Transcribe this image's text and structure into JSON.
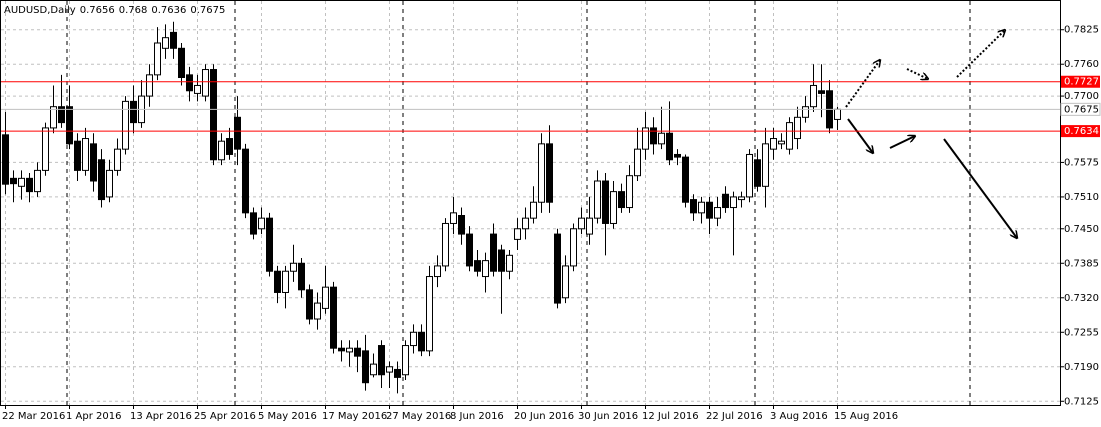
{
  "chart_data": {
    "type": "candlestick",
    "title": "AUDUSD,Daily",
    "categories": [
      "22 Mar 2016",
      null,
      null,
      null,
      null,
      null,
      null,
      null,
      "1 Apr 2016",
      null,
      null,
      null,
      null,
      null,
      null,
      null,
      "13 Apr 2016",
      null,
      null,
      null,
      null,
      null,
      null,
      null,
      "25 Apr 2016",
      null,
      null,
      null,
      null,
      null,
      null,
      null,
      "5 May 2016",
      null,
      null,
      null,
      null,
      null,
      null,
      null,
      "17 May 2016",
      null,
      null,
      null,
      null,
      null,
      null,
      null,
      "27 May 2016",
      null,
      null,
      null,
      null,
      null,
      null,
      null,
      "8 Jun 2016",
      null,
      null,
      null,
      null,
      null,
      null,
      null,
      "20 Jun 2016",
      null,
      null,
      null,
      null,
      null,
      null,
      null,
      "30 Jun 2016",
      null,
      null,
      null,
      null,
      null,
      null,
      null,
      "12 Jul 2016",
      null,
      null,
      null,
      null,
      null,
      null,
      null,
      "22 Jul 2016",
      null,
      null,
      null,
      null,
      null,
      null,
      null,
      "3 Aug 2016",
      null,
      null,
      null,
      null,
      null,
      null,
      null,
      "15 Aug 2016"
    ],
    "open": [
      0.7627,
      0.7545,
      0.753,
      0.7545,
      0.752,
      0.756,
      0.764,
      0.768,
      0.768,
      0.7615,
      0.756,
      0.761,
      0.758,
      0.751,
      0.756,
      0.76,
      0.769,
      0.765,
      0.77,
      0.774,
      0.779,
      0.782,
      0.779,
      0.774,
      0.7705,
      0.77,
      0.775,
      0.758,
      0.762,
      0.766,
      0.76,
      0.748,
      0.745,
      0.747,
      0.737,
      0.733,
      0.737,
      0.7385,
      0.7335,
      0.728,
      0.73,
      0.734,
      0.7225,
      0.7218,
      0.7225,
      0.722,
      0.7175,
      0.723,
      0.718,
      0.7185,
      0.7175,
      0.723,
      0.7255,
      0.722,
      0.736,
      0.738,
      0.746,
      0.7475,
      0.744,
      0.739,
      0.736,
      0.744,
      0.741,
      0.737,
      0.743,
      0.745,
      0.747,
      0.75,
      0.761,
      0.744,
      0.732,
      0.738,
      0.745,
      0.744,
      0.747,
      0.754,
      0.746,
      0.752,
      0.749,
      0.755,
      0.76,
      0.764,
      0.761,
      0.763,
      0.759,
      0.7585,
      0.7505,
      0.748,
      0.75,
      0.747,
      0.7515,
      0.749,
      0.7505,
      0.751,
      0.758,
      0.753,
      0.76,
      0.761,
      0.76,
      0.762,
      0.766,
      0.768,
      0.771,
      0.771,
      0.7656
    ],
    "high": [
      0.767,
      0.756,
      0.756,
      0.7555,
      0.7575,
      0.765,
      0.772,
      0.774,
      0.772,
      0.763,
      0.764,
      0.763,
      0.76,
      0.758,
      0.762,
      0.77,
      0.772,
      0.773,
      0.776,
      0.783,
      0.7835,
      0.784,
      0.78,
      0.7755,
      0.774,
      0.776,
      0.776,
      0.763,
      0.764,
      0.77,
      0.761,
      0.749,
      0.749,
      0.748,
      0.738,
      0.738,
      0.742,
      0.7395,
      0.7345,
      0.733,
      0.738,
      0.735,
      0.724,
      0.724,
      0.724,
      0.725,
      0.7215,
      0.724,
      0.72,
      0.72,
      0.724,
      0.727,
      0.727,
      0.738,
      0.74,
      0.747,
      0.751,
      0.749,
      0.7455,
      0.741,
      0.7405,
      0.746,
      0.742,
      0.741,
      0.747,
      0.749,
      0.753,
      0.763,
      0.7645,
      0.745,
      0.74,
      0.746,
      0.749,
      0.751,
      0.756,
      0.7555,
      0.754,
      0.7535,
      0.757,
      0.764,
      0.767,
      0.766,
      0.768,
      0.769,
      0.76,
      0.759,
      0.7515,
      0.751,
      0.751,
      0.751,
      0.753,
      0.752,
      0.752,
      0.76,
      0.76,
      0.764,
      0.764,
      0.763,
      0.766,
      0.768,
      0.77,
      0.776,
      0.776,
      0.773,
      0.768
    ],
    "low": [
      0.7515,
      0.75,
      0.7505,
      0.75,
      0.751,
      0.755,
      0.763,
      0.764,
      0.76,
      0.754,
      0.755,
      0.752,
      0.749,
      0.75,
      0.755,
      0.759,
      0.763,
      0.764,
      0.768,
      0.773,
      0.777,
      0.777,
      0.772,
      0.769,
      0.769,
      0.769,
      0.757,
      0.757,
      0.758,
      0.757,
      0.747,
      0.743,
      0.744,
      0.736,
      0.731,
      0.73,
      0.735,
      0.732,
      0.727,
      0.726,
      0.729,
      0.7215,
      0.72,
      0.719,
      0.718,
      0.7145,
      0.717,
      0.715,
      0.715,
      0.714,
      0.7165,
      0.7215,
      0.721,
      0.721,
      0.734,
      0.737,
      0.744,
      0.742,
      0.737,
      0.736,
      0.733,
      0.736,
      0.729,
      0.7355,
      0.741,
      0.743,
      0.746,
      0.748,
      0.748,
      0.73,
      0.731,
      0.737,
      0.744,
      0.742,
      0.746,
      0.74,
      0.745,
      0.748,
      0.748,
      0.754,
      0.758,
      0.759,
      0.76,
      0.757,
      0.757,
      0.749,
      0.7465,
      0.746,
      0.744,
      0.7455,
      0.748,
      0.74,
      0.749,
      0.75,
      0.752,
      0.749,
      0.758,
      0.76,
      0.759,
      0.76,
      0.765,
      0.767,
      0.766,
      0.763,
      0.7636
    ],
    "close": [
      0.7534,
      0.7535,
      0.7545,
      0.752,
      0.756,
      0.764,
      0.768,
      0.765,
      0.761,
      0.756,
      0.762,
      0.754,
      0.7505,
      0.756,
      0.76,
      0.769,
      0.765,
      0.77,
      0.774,
      0.78,
      0.781,
      0.779,
      0.7735,
      0.771,
      0.772,
      0.775,
      0.758,
      0.7615,
      0.759,
      0.76,
      0.748,
      0.744,
      0.747,
      0.737,
      0.733,
      0.737,
      0.7385,
      0.7335,
      0.728,
      0.731,
      0.734,
      0.7225,
      0.722,
      0.7225,
      0.721,
      0.716,
      0.7195,
      0.7175,
      0.719,
      0.717,
      0.723,
      0.7255,
      0.722,
      0.736,
      0.738,
      0.746,
      0.748,
      0.744,
      0.738,
      0.737,
      0.739,
      0.737,
      0.737,
      0.74,
      0.745,
      0.747,
      0.75,
      0.761,
      0.75,
      0.731,
      0.738,
      0.745,
      0.747,
      0.747,
      0.754,
      0.746,
      0.752,
      0.749,
      0.755,
      0.76,
      0.764,
      0.761,
      0.763,
      0.758,
      0.7585,
      0.75,
      0.748,
      0.75,
      0.747,
      0.749,
      0.749,
      0.751,
      0.751,
      0.759,
      0.753,
      0.761,
      0.762,
      0.7615,
      0.765,
      0.766,
      0.768,
      0.772,
      0.7705,
      0.764,
      0.7675
    ],
    "up_color": "#ffffff",
    "down_color": "#000000",
    "levels": [
      0.7727,
      0.7634
    ],
    "level_color": "#ff0000",
    "ylim": [
      0.7118,
      0.7881
    ],
    "yticks": [
      0.7825,
      {
        "value": 0.776,
        "label": "0.7760"
      },
      {
        "value": 0.77,
        "label": "0.7700"
      },
      0.7575,
      {
        "value": 0.751,
        "label": "0.7510"
      },
      {
        "value": 0.745,
        "label": "0.7450"
      },
      0.7385,
      {
        "value": 0.732,
        "label": "0.7320"
      },
      0.7255,
      {
        "value": 0.719,
        "label": "0.7190"
      },
      0.7125
    ],
    "grid": true
  }
}
